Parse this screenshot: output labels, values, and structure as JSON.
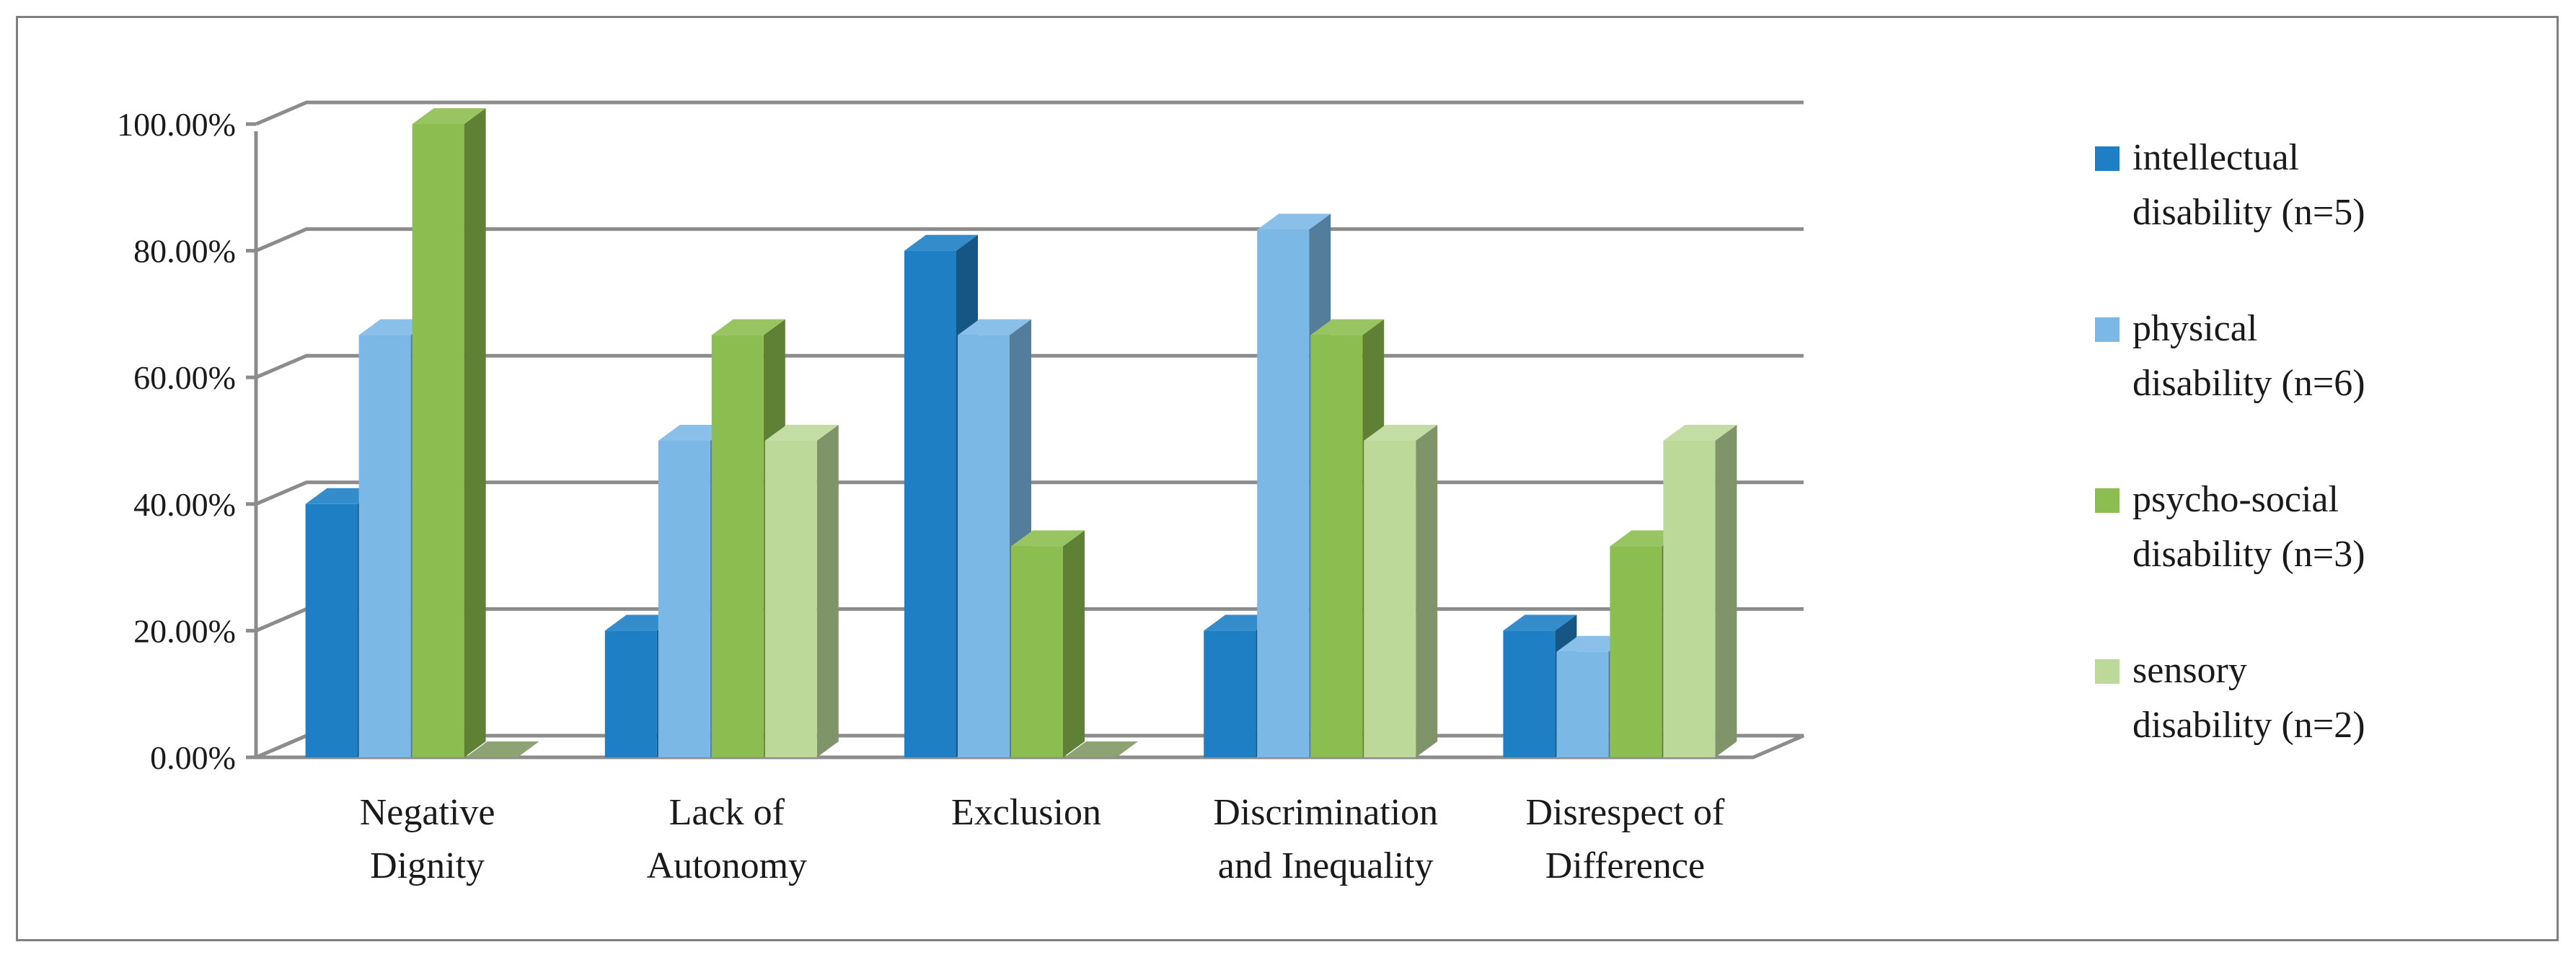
{
  "chart_data": {
    "type": "bar",
    "title": "",
    "xlabel": "",
    "ylabel": "",
    "ylim": [
      0,
      100
    ],
    "y_tick_values": [
      0,
      20,
      40,
      60,
      80,
      100
    ],
    "y_tick_labels": [
      "0.00%",
      "20.00%",
      "40.00%",
      "60.00%",
      "80.00%",
      "100.00%"
    ],
    "grid": true,
    "legend_position": "right",
    "categories": [
      {
        "line1": "Negative",
        "line2": "Dignity"
      },
      {
        "line1": "Lack of",
        "line2": "Autonomy"
      },
      {
        "line1": "Exclusion",
        "line2": ""
      },
      {
        "line1": "Discrimination",
        "line2": "and Inequality"
      },
      {
        "line1": "Disrespect of",
        "line2": "Difference"
      }
    ],
    "series": [
      {
        "name_line1": "intellectual",
        "name_line2": "disability (n=5)",
        "color": "#1f7fc4",
        "values": [
          40,
          20,
          80,
          20,
          20
        ]
      },
      {
        "name_line1": "physical",
        "name_line2": "disability (n=6)",
        "color": "#7cb8e6",
        "values": [
          66.67,
          50,
          66.67,
          83.33,
          16.67
        ]
      },
      {
        "name_line1": "psycho-social",
        "name_line2": "disability (n=3)",
        "color": "#8cbd50",
        "values": [
          100,
          66.67,
          33.33,
          66.67,
          33.33
        ]
      },
      {
        "name_line1": "sensory",
        "name_line2": "disability (n=2)",
        "color": "#bcd99a",
        "values": [
          0,
          50,
          0,
          50,
          50
        ]
      }
    ]
  }
}
